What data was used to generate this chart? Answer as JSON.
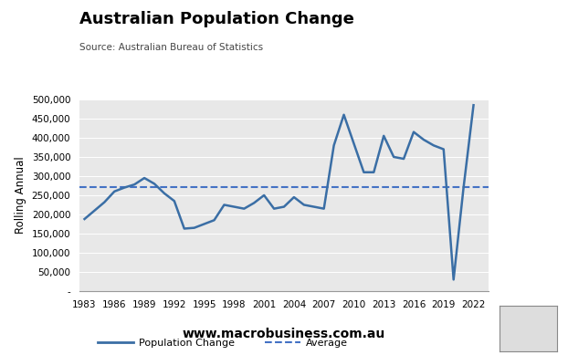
{
  "title": "Australian Population Change",
  "subtitle": "Source: Australian Bureau of Statistics",
  "ylabel": "Rolling Annual",
  "background_color": "#e8e8e8",
  "fig_background": "#ffffff",
  "line_color": "#3a6ea5",
  "avg_color": "#4472c4",
  "avg_value": 272000,
  "ylim": [
    0,
    500000
  ],
  "yticks": [
    0,
    50000,
    100000,
    150000,
    200000,
    250000,
    300000,
    350000,
    400000,
    450000,
    500000
  ],
  "ytick_labels": [
    "-",
    "50,000",
    "100,000",
    "150,000",
    "200,000",
    "250,000",
    "300,000",
    "350,000",
    "400,000",
    "450,000",
    "500,000"
  ],
  "xticks": [
    1983,
    1986,
    1989,
    1992,
    1995,
    1998,
    2001,
    2004,
    2007,
    2010,
    2013,
    2016,
    2019,
    2022
  ],
  "website": "www.macrobusiness.com.au",
  "macro_logo_color": "#cc0000",
  "years": [
    1983,
    1984,
    1985,
    1986,
    1987,
    1988,
    1989,
    1990,
    1991,
    1992,
    1993,
    1994,
    1995,
    1996,
    1997,
    1998,
    1999,
    2000,
    2001,
    2002,
    2003,
    2004,
    2005,
    2006,
    2007,
    2008,
    2009,
    2010,
    2011,
    2012,
    2013,
    2014,
    2015,
    2016,
    2017,
    2018,
    2019,
    2020,
    2021,
    2022
  ],
  "values": [
    188000,
    210000,
    232000,
    260000,
    270000,
    278000,
    295000,
    280000,
    255000,
    235000,
    163000,
    165000,
    175000,
    185000,
    225000,
    220000,
    215000,
    230000,
    250000,
    215000,
    220000,
    245000,
    225000,
    220000,
    215000,
    380000,
    460000,
    385000,
    310000,
    310000,
    405000,
    350000,
    345000,
    415000,
    395000,
    380000,
    370000,
    30000,
    270000,
    485000
  ]
}
